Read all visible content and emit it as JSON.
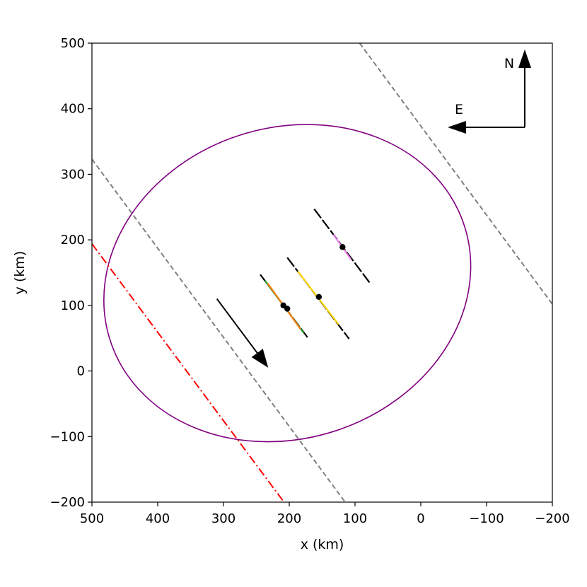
{
  "chart_data": {
    "type": "line",
    "title": "",
    "xlabel": "x (km)",
    "ylabel": "y (km)",
    "xlim": [
      500,
      -200
    ],
    "ylim": [
      -200,
      500
    ],
    "x_ticks": [
      500,
      400,
      300,
      200,
      100,
      0,
      -100,
      -200
    ],
    "y_ticks": [
      500,
      400,
      300,
      200,
      100,
      0,
      -100,
      -200
    ],
    "x_tick_labels": [
      "500",
      "400",
      "300",
      "200",
      "100",
      "0",
      "−100",
      "−200"
    ],
    "y_tick_labels": [
      "500",
      "400",
      "300",
      "200",
      "100",
      "0",
      "−100",
      "−200"
    ],
    "grid": false,
    "ellipse": {
      "center": [
        203,
        134
      ],
      "semi_major": 283,
      "semi_minor": 237,
      "rotation_deg": -18,
      "color": "#800080"
    },
    "dashed_lines": [
      {
        "from": [
          500,
          323
        ],
        "to": [
          115,
          -200
        ],
        "color": "#808080"
      },
      {
        "from": [
          93,
          500
        ],
        "to": [
          -200,
          102
        ],
        "color": "#808080"
      }
    ],
    "dashdot_line": {
      "from": [
        500,
        194
      ],
      "to": [
        208,
        -200
      ],
      "color": "#ff0000"
    },
    "chords": [
      {
        "from": [
          244,
          147
        ],
        "to": [
          172,
          51
        ],
        "color": "#000000"
      },
      {
        "from": [
          237,
          138
        ],
        "to": [
          178,
          58
        ],
        "color": "#2ca02c"
      },
      {
        "from": [
          233,
          134
        ],
        "to": [
          183,
          64
        ],
        "color": "#ff7f0e"
      },
      {
        "from": [
          203,
          173
        ],
        "to": [
          109,
          49
        ],
        "color": "#000000"
      },
      {
        "from": [
          187,
          152
        ],
        "to": [
          125,
          71
        ],
        "color": "#ffd700"
      },
      {
        "from": [
          162,
          247
        ],
        "to": [
          78,
          135
        ],
        "color": "#000000"
      },
      {
        "from": [
          133,
          208
        ],
        "to": [
          106,
          170
        ],
        "color": "#ee82ee"
      }
    ],
    "points": [
      {
        "x": 209,
        "y": 100
      },
      {
        "x": 203,
        "y": 95
      },
      {
        "x": 155,
        "y": 113
      },
      {
        "x": 119,
        "y": 189
      }
    ],
    "motion_arrow": {
      "from": [
        310,
        110
      ],
      "to": [
        232,
        5
      ]
    },
    "compass": {
      "north_label": "N",
      "east_label": "E"
    }
  }
}
